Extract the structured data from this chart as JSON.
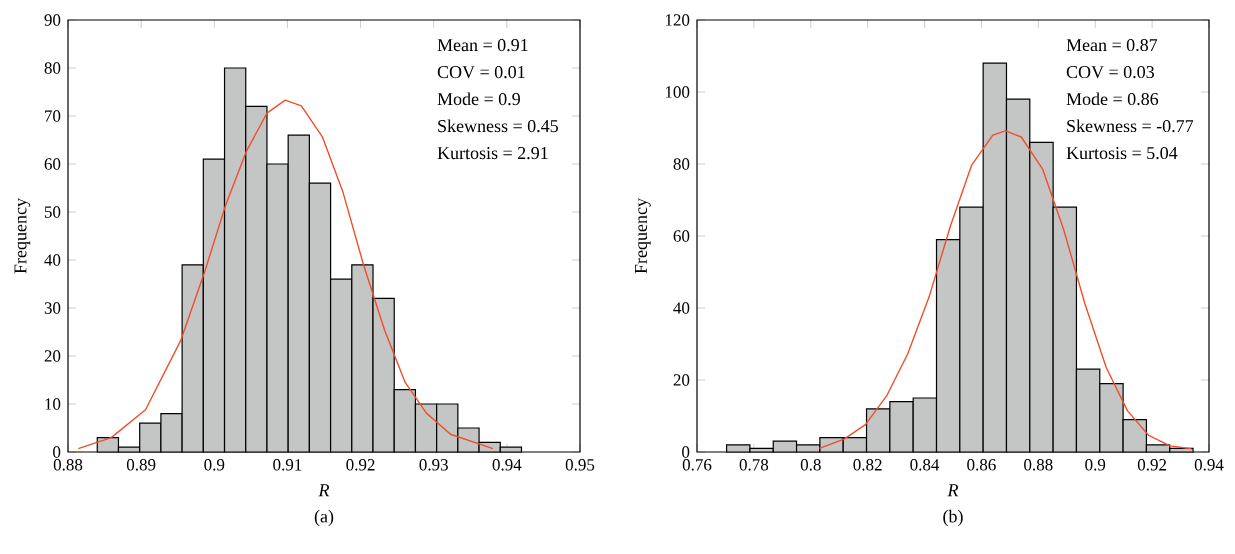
{
  "chart_data": [
    {
      "type": "histogram",
      "subtitle": "(a)",
      "xlabel": "*R*",
      "ylabel": "Frequency",
      "annotations": [
        "Mean = 0.91",
        "COV = 0.01",
        "Mode = 0.9",
        "Skewness = 0.45",
        "Kurtosis = 2.91"
      ],
      "bins": [
        0.884,
        0.8869,
        0.8898,
        0.8927,
        0.8956,
        0.8985,
        0.9014,
        0.9043,
        0.9072,
        0.9101,
        0.913,
        0.9159,
        0.9188,
        0.9217,
        0.9246,
        0.9275,
        0.9304,
        0.9333,
        0.9362,
        0.9391,
        0.942
      ],
      "series": [
        {
          "color": "#c4c6c5",
          "values": [
            3,
            1,
            6,
            8,
            39,
            61,
            80,
            72,
            60,
            66,
            56,
            36,
            39,
            32,
            13,
            10,
            10,
            5,
            2,
            1
          ]
        },
        {
          "type": "line",
          "color": "#f04e2b",
          "x": [
            0.8814,
            0.8859,
            0.8906,
            0.8954,
            0.8987,
            0.9015,
            0.9044,
            0.9072,
            0.9097,
            0.9119,
            0.9148,
            0.9176,
            0.9204,
            0.9233,
            0.9261,
            0.929,
            0.9323,
            0.9381
          ],
          "values": [
            0.7,
            3.0,
            8.8,
            23.2,
            37.6,
            51.2,
            62.7,
            70.6,
            73.3,
            72.1,
            65.6,
            54.1,
            39.0,
            25.3,
            14.5,
            8.1,
            3.7,
            0.7
          ]
        }
      ],
      "xlim": [
        0.88,
        0.95
      ],
      "xticks": [
        0.88,
        0.89,
        0.9,
        0.91,
        0.92,
        0.93,
        0.94,
        0.95
      ],
      "ylim": [
        0,
        90
      ],
      "yticks": [
        0,
        10,
        20,
        30,
        40,
        50,
        60,
        70,
        80,
        90
      ]
    },
    {
      "type": "histogram",
      "subtitle": "(b)",
      "xlabel": "*R*",
      "ylabel": "Frequency",
      "annotations": [
        "Mean = 0.87",
        "COV = 0.03",
        "Mode = 0.86",
        "Skewness = -0.77",
        "Kurtosis = 5.04"
      ],
      "bins": [
        0.7704,
        0.7786,
        0.7868,
        0.795,
        0.8032,
        0.8114,
        0.8196,
        0.8278,
        0.836,
        0.8442,
        0.8524,
        0.8606,
        0.8688,
        0.877,
        0.8852,
        0.8934,
        0.9016,
        0.9098,
        0.918,
        0.9262,
        0.9344
      ],
      "series": [
        {
          "color": "#c4c6c5",
          "values": [
            2,
            1,
            3,
            2,
            4,
            4,
            12,
            14,
            15,
            59,
            68,
            108,
            98,
            86,
            68,
            23,
            19,
            9,
            2,
            1
          ]
        },
        {
          "type": "line",
          "color": "#f04e2b",
          "x": [
            0.803,
            0.8117,
            0.8192,
            0.8266,
            0.8341,
            0.8416,
            0.8491,
            0.8565,
            0.864,
            0.8684,
            0.874,
            0.8815,
            0.8889,
            0.8964,
            0.9039,
            0.9113,
            0.9188,
            0.9263,
            0.9338
          ],
          "values": [
            1.0,
            3.6,
            7.6,
            15.5,
            27.3,
            43.1,
            62.8,
            79.6,
            88.0,
            89.2,
            87.5,
            78.6,
            61.8,
            41.1,
            23.4,
            11.5,
            4.6,
            1.7,
            0.9
          ]
        }
      ],
      "xlim": [
        0.76,
        0.94
      ],
      "xticks": [
        0.76,
        0.78,
        0.8,
        0.82,
        0.84,
        0.86,
        0.88,
        0.9,
        0.92,
        0.94
      ],
      "ylim": [
        0,
        120
      ],
      "yticks": [
        0,
        20,
        40,
        60,
        80,
        100,
        120
      ]
    }
  ]
}
